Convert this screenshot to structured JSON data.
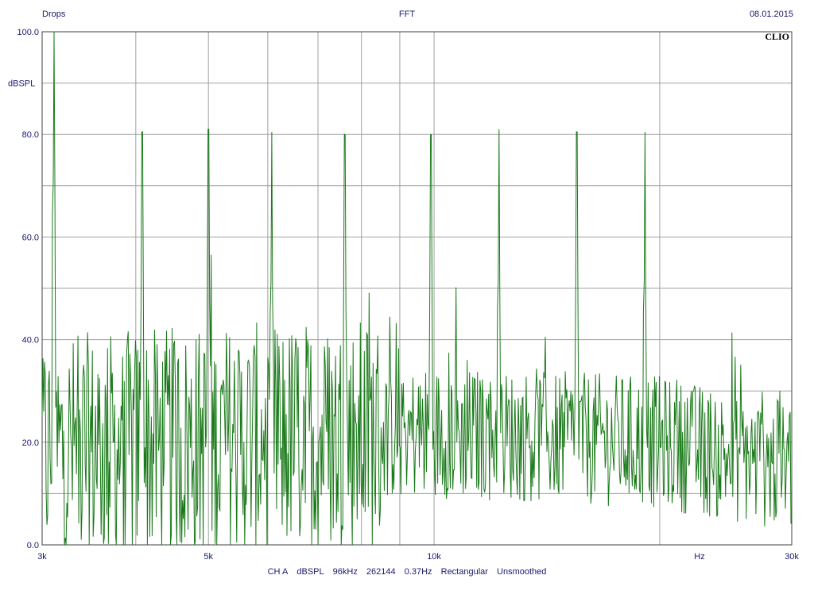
{
  "header": {
    "left": "Drops",
    "center": "FFT",
    "right": "08.01.2015"
  },
  "brand": "CLIO",
  "footer": [
    "CH A",
    "dBSPL",
    "96kHz",
    "262144",
    "0.37Hz",
    "Rectangular",
    "Unsmoothed"
  ],
  "colors": {
    "trace": "#1a7a1a",
    "grid": "#a0a0a0",
    "text": "#1a1a6e",
    "frame": "#404040"
  },
  "chart_data": {
    "type": "line",
    "title": "FFT",
    "xlabel": "Hz",
    "ylabel": "dBSPL",
    "xscale": "log",
    "xlim": [
      3000,
      30000
    ],
    "ylim": [
      0,
      100
    ],
    "grid": true,
    "x_ticks": [
      {
        "value": 3000,
        "label": "3k"
      },
      {
        "value": 5000,
        "label": "5k"
      },
      {
        "value": 10000,
        "label": "10k"
      },
      {
        "value": 30000,
        "label": "30k"
      }
    ],
    "x_unit_label": "Hz",
    "y_ticks": [
      {
        "value": 0,
        "label": "0.0"
      },
      {
        "value": 20,
        "label": "20.0"
      },
      {
        "value": 40,
        "label": "40.0"
      },
      {
        "value": 60,
        "label": "60.0"
      },
      {
        "value": 80,
        "label": "80.0"
      },
      {
        "value": 100,
        "label": "100.0"
      }
    ],
    "peaks": [
      {
        "x": 3110,
        "y": 100
      },
      {
        "x": 4080,
        "y": 80.5
      },
      {
        "x": 5000,
        "y": 81
      },
      {
        "x": 6070,
        "y": 80.5
      },
      {
        "x": 7600,
        "y": 80
      },
      {
        "x": 9900,
        "y": 80
      },
      {
        "x": 12200,
        "y": 81
      },
      {
        "x": 15500,
        "y": 80.5
      },
      {
        "x": 19100,
        "y": 80.5
      }
    ],
    "noise_floor_approx": [
      {
        "x": 3000,
        "y": 18
      },
      {
        "x": 5000,
        "y": 20
      },
      {
        "x": 10000,
        "y": 22
      },
      {
        "x": 20000,
        "y": 20
      },
      {
        "x": 30000,
        "y": 15
      }
    ]
  }
}
